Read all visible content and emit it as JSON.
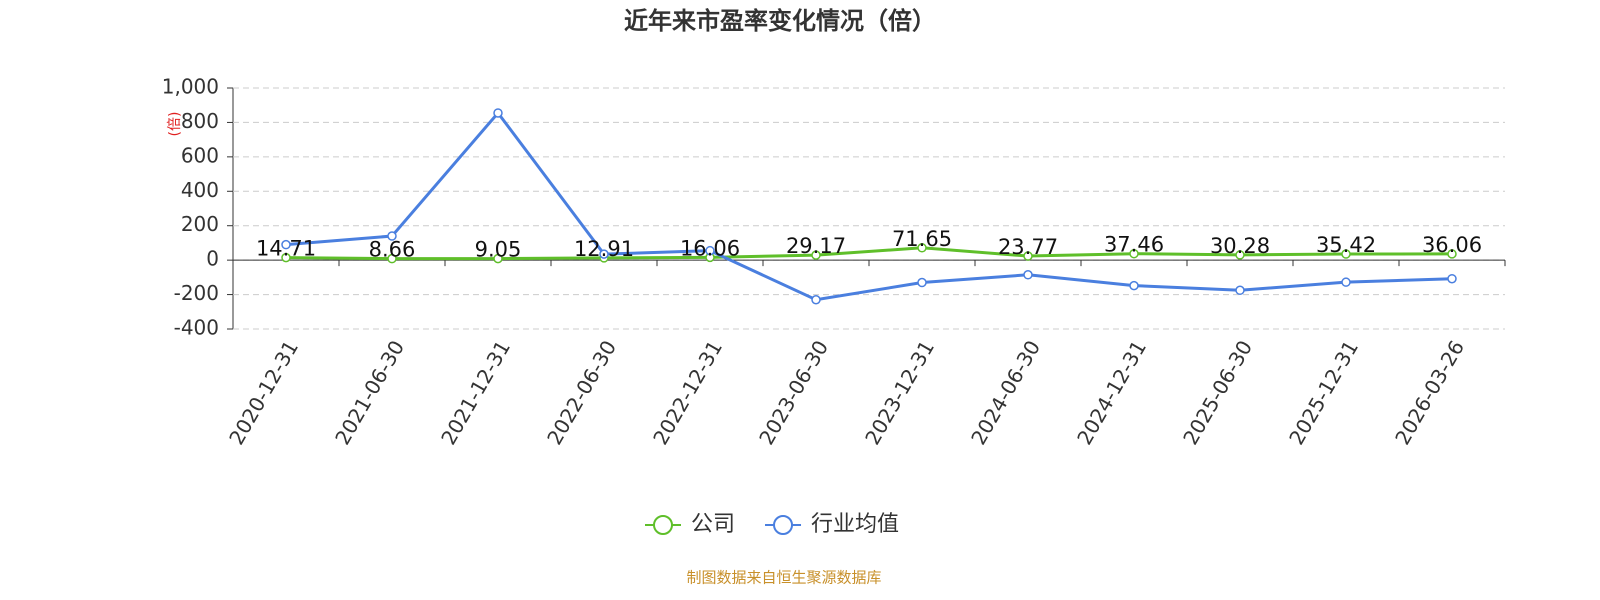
{
  "chart_data": {
    "type": "line",
    "title": "近年来市盈率变化情况（倍）",
    "y_label": "(倍)",
    "categories": [
      "2020-12-31",
      "2021-06-30",
      "2021-12-31",
      "2022-06-30",
      "2022-12-31",
      "2023-06-30",
      "2023-12-31",
      "2024-06-30",
      "2024-12-31",
      "2025-06-30",
      "2025-12-31",
      "2026-03-26"
    ],
    "series": [
      {
        "name": "公司",
        "color": "#5fbf2a",
        "values": [
          14.71,
          8.66,
          9.05,
          12.91,
          16.06,
          29.17,
          71.65,
          23.77,
          37.46,
          30.28,
          35.42,
          36.06
        ]
      },
      {
        "name": "行业均值",
        "color": "#4a7fdf",
        "values": [
          90,
          140,
          855,
          35,
          55,
          -230,
          -130,
          -85,
          -148,
          -175,
          -128,
          -108
        ]
      }
    ],
    "ylim": [
      -400,
      1000
    ],
    "yticks": [
      -400,
      -200,
      0,
      200,
      400,
      600,
      800,
      {
        "value": 1000,
        "label": "1,000"
      }
    ],
    "grid": true,
    "legend": "bottom",
    "source": "制图数据来自恒生聚源数据库"
  }
}
